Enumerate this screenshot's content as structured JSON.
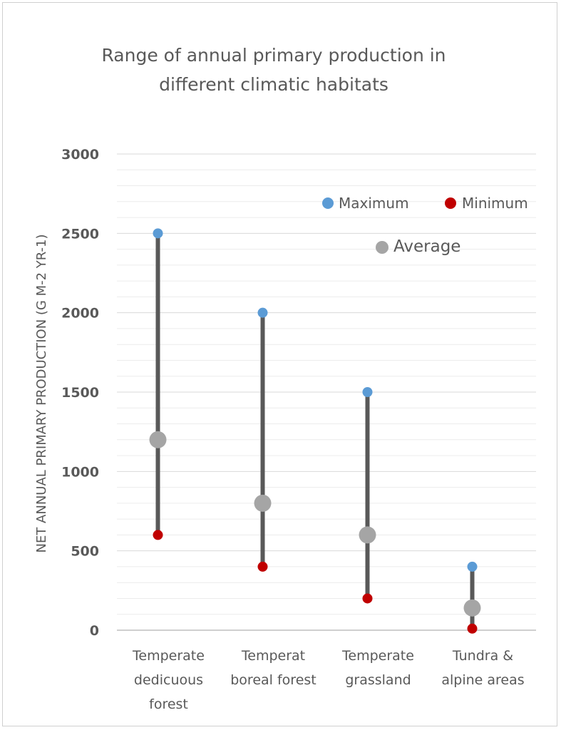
{
  "chart_data": {
    "type": "scatter",
    "title_lines": [
      "Range of annual  primary production in",
      "different climatic habitats"
    ],
    "ylabel": "NET ANNUAL PRIMARY PRODUCTION (G M-2 YR-1)",
    "xlabel": "",
    "ylim": [
      0,
      3000
    ],
    "yticks": [
      "0",
      "500",
      "1000",
      "1500",
      "2000",
      "2500",
      "3000"
    ],
    "grid": true,
    "legend_placement": "top-right",
    "categories": [
      [
        "Temperate",
        "dedicuous",
        "forest"
      ],
      [
        "Temperat",
        "boreal forest"
      ],
      [
        "Temperate",
        "grassland"
      ],
      [
        "Tundra &",
        "alpine areas"
      ]
    ],
    "series": [
      {
        "name": "Maximum",
        "color": "#5b9bd5",
        "values": [
          2500,
          2000,
          1500,
          400
        ]
      },
      {
        "name": "Minimum",
        "color": "#c00000",
        "values": [
          600,
          400,
          200,
          10
        ]
      },
      {
        "name": "Average",
        "color": "#a5a5a5",
        "values": [
          1200,
          800,
          600,
          140
        ]
      }
    ],
    "range_line_color": "#595959"
  }
}
